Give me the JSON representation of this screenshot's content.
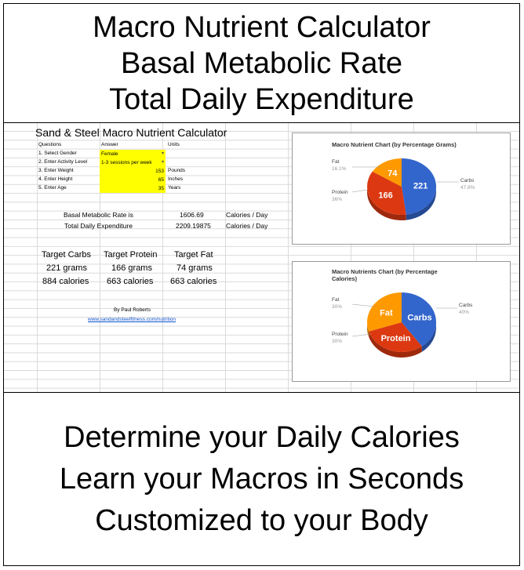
{
  "top_banner": {
    "lines": [
      "Macro Nutrient Calculator",
      "Basal Metabolic Rate",
      "Total Daily Expenditure"
    ]
  },
  "sheet": {
    "title": "Sand & Steel Macro Nutrient Calculator",
    "headers": {
      "questions": "Questions",
      "answer": "Answer",
      "units": "Units"
    },
    "rows": [
      {
        "question": "1. Select Gender",
        "answer": "Female",
        "unit": "",
        "dropdown": true
      },
      {
        "question": "2. Enter Activity Level",
        "answer": "1-3 sessions per week",
        "unit": "",
        "dropdown": true
      },
      {
        "question": "3. Enter Weight",
        "answer": "153",
        "unit": "Pounds",
        "dropdown": false
      },
      {
        "question": "4. Enter Height",
        "answer": "65",
        "unit": "Inches",
        "dropdown": false
      },
      {
        "question": "5. Enter Age",
        "answer": "35",
        "unit": "Years",
        "dropdown": false
      }
    ],
    "bmr": {
      "label": "Basal Metabolic Rate is",
      "value": "1606.69",
      "unit": "Calories / Day"
    },
    "tde": {
      "label": "Total Daily Expenditure",
      "value": "2209.19875",
      "unit": "Calories / Day"
    },
    "targets": {
      "carbs": {
        "label": "Target Carbs",
        "grams": "221 grams",
        "calories": "884 calories"
      },
      "protein": {
        "label": "Target Protein",
        "grams": "166 grams",
        "calories": "663 calories"
      },
      "fat": {
        "label": "Target Fat",
        "grams": "74 grams",
        "calories": "663 calories"
      }
    },
    "author": "By Paul Roberts",
    "link": "www.sandandsteelfitness.com/nutrition"
  },
  "chart_data": [
    {
      "type": "pie",
      "title": "Macro Nutrient Chart (by Percentage Grams)",
      "labels": [
        "Carbs",
        "Protein",
        "Fat"
      ],
      "values": [
        221,
        166,
        74
      ],
      "slice_labels": [
        "221",
        "166",
        "74"
      ],
      "percent_labels": [
        "47.9%",
        "36%",
        "16.1%"
      ],
      "colors": [
        "#3366cc",
        "#dc3912",
        "#ff9900"
      ]
    },
    {
      "type": "pie",
      "title_lines": [
        "Macro Nutrients Chart (by Percentage",
        "Calories)"
      ],
      "labels": [
        "Carbs",
        "Protein",
        "Fat"
      ],
      "values": [
        884,
        663,
        663
      ],
      "slice_labels": [
        "Carbs",
        "Protein",
        "Fat"
      ],
      "percent_labels": [
        "40%",
        "30%",
        "30%"
      ],
      "colors": [
        "#3366cc",
        "#dc3912",
        "#ff9900"
      ]
    }
  ],
  "bottom_banner": {
    "lines": [
      "Determine your Daily Calories",
      "Learn your Macros in Seconds",
      "Customized to your Body"
    ]
  }
}
